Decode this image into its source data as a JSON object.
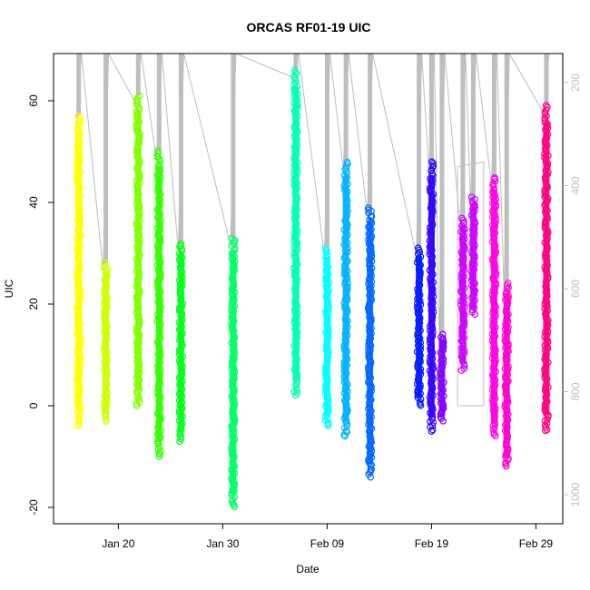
{
  "chart_data": {
    "type": "scatter",
    "title": "ORCAS RF01-19 UIC",
    "xlabel": "Date",
    "ylabel": "UIC",
    "x_tick_labels": [
      "Jan 20",
      "Jan 30",
      "Feb 09",
      "Feb 19",
      "Feb 29"
    ],
    "y_ticks": [
      -20,
      0,
      20,
      40,
      60
    ],
    "y_tick_labels": [
      "-20",
      "0",
      "20",
      "40",
      "60"
    ],
    "ylim": [
      -20,
      69
    ],
    "secondary_axis": {
      "ticks": [
        200,
        400,
        600,
        800,
        1000
      ],
      "tick_labels": [
        "200",
        "400",
        "600",
        "800",
        "1000"
      ],
      "reversed": true,
      "color": "#bebebe"
    },
    "series": [
      {
        "values": {
          "ymin": -4,
          "ymax": 57,
          "label_day": 16.2
        },
        "color": "#FFFF00",
        "day": 16.2
      },
      {
        "values": {
          "ymin": -3,
          "ymax": 28,
          "label_day": 18.8
        },
        "color": "#CCFF00",
        "day": 18.8
      },
      {
        "values": {
          "ymin": 0,
          "ymax": 61,
          "label_day": 21.9
        },
        "color": "#80FF00",
        "day": 21.9
      },
      {
        "values": {
          "ymin": -10,
          "ymax": 50,
          "label_day": 23.9
        },
        "color": "#33FF00",
        "day": 23.9
      },
      {
        "values": {
          "ymin": -7,
          "ymax": 32,
          "label_day": 26.0
        },
        "color": "#00FF1A",
        "day": 26.0
      },
      {
        "values": {
          "ymin": -20,
          "ymax": 33,
          "label_day": 31.0
        },
        "color": "#00FF66",
        "day": 31.0
      },
      {
        "values": {
          "ymin": 2,
          "ymax": 66,
          "label_day": 37.0
        },
        "color": "#00FFB3",
        "day": 37.0
      },
      {
        "values": {
          "ymin": -4,
          "ymax": 31,
          "label_day": 40.0
        },
        "color": "#00FFFF",
        "day": 40.0
      },
      {
        "values": {
          "ymin": -6,
          "ymax": 48,
          "label_day": 41.8
        },
        "color": "#00B3FF",
        "day": 41.8
      },
      {
        "values": {
          "ymin": -14,
          "ymax": 39,
          "label_day": 44.1
        },
        "color": "#0066FF",
        "day": 44.1
      },
      {
        "values": {
          "ymin": 0,
          "ymax": 31,
          "label_day": 48.8
        },
        "color": "#001AFF",
        "day": 48.8
      },
      {
        "values": {
          "ymin": -5,
          "ymax": 48,
          "label_day": 50.0
        },
        "color": "#3300FF",
        "day": 50.0
      },
      {
        "values": {
          "ymin": -3,
          "ymax": 14,
          "label_day": 51.0
        },
        "color": "#8000FF",
        "day": 51.0
      },
      {
        "values": {
          "ymin": 7,
          "ymax": 37,
          "label_day": 53.0
        },
        "color": "#CC00FF",
        "day": 53.0
      },
      {
        "values": {
          "ymin": 18,
          "ymax": 41,
          "label_day": 54.0
        },
        "color": "#CC00FF",
        "day": 54.0
      },
      {
        "values": {
          "ymin": -6,
          "ymax": 45,
          "label_day": 56.0
        },
        "color": "#FF00E6",
        "day": 56.0
      },
      {
        "values": {
          "ymin": -12,
          "ymax": 24,
          "label_day": 57.2
        },
        "color": "#FF00CC",
        "day": 57.2
      },
      {
        "values": {
          "ymin": -5,
          "ymax": 59,
          "label_day": 61.0
        },
        "color": "#FF0080",
        "day": 61.0
      }
    ],
    "grid": false,
    "legend": "none"
  }
}
